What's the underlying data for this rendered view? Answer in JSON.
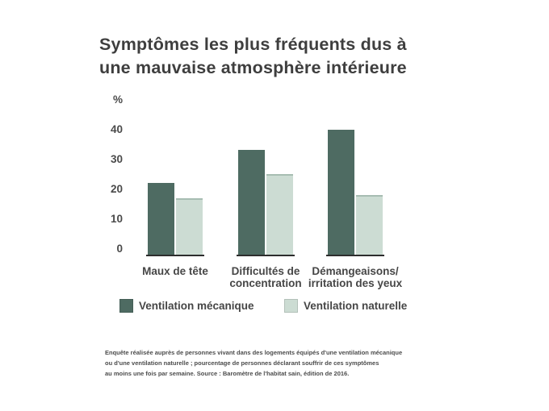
{
  "title": {
    "line1": "Symptômes les plus fréquents dus à",
    "line2": "une mauvaise atmosphère intérieure"
  },
  "chart_data": {
    "type": "bar",
    "title": "Symptômes les plus fréquents dus à une mauvaise atmosphère intérieure",
    "unit_label": "%",
    "categories": [
      "Maux de tête",
      "Difficultés de concentration",
      "Démangeaisons/ irritation des yeux"
    ],
    "category_lines": [
      [
        "Maux de tête"
      ],
      [
        "Difficultés de",
        "concentration"
      ],
      [
        "Démangeaisons/",
        "irritation des yeux"
      ]
    ],
    "series": [
      {
        "name": "Ventilation mécanique",
        "color": "#4e6b62",
        "values": [
          24,
          35,
          42
        ]
      },
      {
        "name": "Ventilation naturelle",
        "color": "#ccdcd3",
        "values": [
          19,
          27,
          20
        ]
      }
    ],
    "yticks": [
      0,
      10,
      20,
      30,
      40
    ],
    "ylim": [
      0,
      44
    ],
    "ylabel": "%",
    "grid": false,
    "legend_position": "bottom"
  },
  "footnote": {
    "lines": [
      "Enquête réalisée auprès de personnes vivant dans des logements équipés d'une ventilation mécanique",
      "ou d'une ventilation naturelle ; pourcentage de personnes déclarant souffrir de ces symptômes",
      "au moins une fois par semaine. Source : Baromètre de l'habitat sain, édition de 2016."
    ]
  },
  "colors": {
    "background": "#ffffff",
    "title_text": "#3e3e3e",
    "axis_text": "#4a4a4a",
    "bar_dark": "#4e6b62",
    "bar_light": "#ccdcd3",
    "bar_light_top_edge": "#a7bdb2",
    "baseline": "#2d2d2d"
  }
}
